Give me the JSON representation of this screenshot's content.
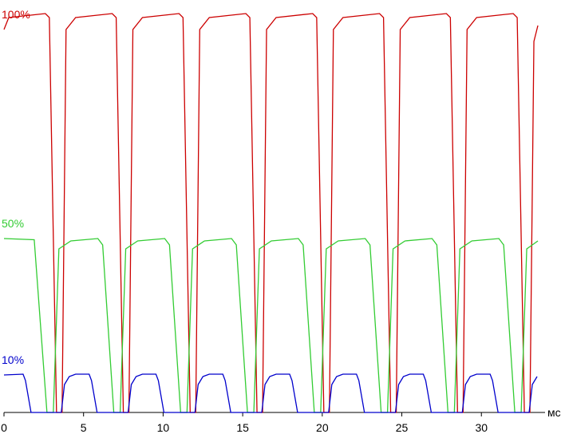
{
  "chart_data": {
    "type": "line",
    "x_label": "мс",
    "xlim": [
      0,
      34
    ],
    "xticks": [
      0,
      5,
      10,
      15,
      20,
      25,
      30
    ],
    "ylim": [
      0,
      100
    ],
    "series": [
      {
        "name": "100%",
        "color": "#cc0000",
        "x": [
          0,
          0.3,
          2.6,
          2.85,
          3.3,
          3.65,
          3.9,
          4.5,
          6.8,
          7.05,
          7.5,
          7.85,
          8.1,
          8.7,
          11.0,
          11.25,
          11.7,
          12.05,
          12.3,
          12.9,
          15.2,
          15.45,
          15.9,
          16.25,
          16.5,
          17.1,
          19.4,
          19.65,
          20.1,
          20.45,
          20.7,
          21.3,
          23.6,
          23.85,
          24.3,
          24.65,
          24.9,
          25.5,
          27.8,
          28.05,
          28.5,
          28.85,
          29.1,
          29.7,
          32.0,
          32.25,
          32.7,
          33.05,
          33.3,
          33.55
        ],
        "values": [
          96,
          99,
          100,
          99,
          0,
          0,
          96,
          99,
          100,
          99,
          0,
          0,
          96,
          99,
          100,
          99,
          0,
          0,
          96,
          99,
          100,
          99,
          0,
          0,
          96,
          99,
          100,
          99,
          0,
          0,
          96,
          99,
          100,
          99,
          0,
          0,
          96,
          99,
          100,
          99,
          0,
          0,
          96,
          99,
          100,
          99,
          0,
          0,
          93,
          97
        ]
      },
      {
        "name": "50%",
        "color": "#33cc33",
        "x": [
          0,
          1.9,
          2.7,
          3.1,
          3.45,
          4.2,
          5.9,
          6.2,
          6.9,
          7.3,
          7.65,
          8.4,
          10.1,
          10.4,
          11.1,
          11.5,
          11.85,
          12.6,
          14.3,
          14.6,
          15.3,
          15.7,
          16.05,
          16.8,
          18.5,
          18.8,
          19.5,
          19.9,
          20.25,
          21.0,
          22.7,
          23.0,
          23.7,
          24.1,
          24.45,
          25.2,
          26.9,
          27.2,
          27.9,
          28.3,
          28.65,
          29.4,
          31.1,
          31.4,
          32.1,
          32.5,
          32.85,
          33.55
        ],
        "values": [
          43.6,
          43.3,
          0,
          0,
          41,
          43,
          43.6,
          42,
          0,
          0,
          41,
          43,
          43.6,
          42,
          0,
          0,
          41,
          43,
          43.6,
          42,
          0,
          0,
          41,
          43,
          43.6,
          42,
          0,
          0,
          41,
          43,
          43.6,
          42,
          0,
          0,
          41,
          43,
          43.6,
          42,
          0,
          0,
          41,
          43,
          43.6,
          42,
          0,
          0,
          41,
          43
        ]
      },
      {
        "name": "10%",
        "color": "#0000cc",
        "x": [
          0,
          1.2,
          1.35,
          1.7,
          3.6,
          3.8,
          4.1,
          4.5,
          5.35,
          5.5,
          5.85,
          7.8,
          8.0,
          8.3,
          8.7,
          9.55,
          9.7,
          10.05,
          12.0,
          12.2,
          12.5,
          12.9,
          13.75,
          13.9,
          14.25,
          16.2,
          16.4,
          16.7,
          17.1,
          17.95,
          18.1,
          18.45,
          20.4,
          20.6,
          20.9,
          21.3,
          22.15,
          22.3,
          22.65,
          24.6,
          24.8,
          25.1,
          25.5,
          26.35,
          26.5,
          26.85,
          28.8,
          29.0,
          29.3,
          29.7,
          30.55,
          30.7,
          31.05,
          33.0,
          33.2,
          33.5
        ],
        "values": [
          9.4,
          9.6,
          8,
          0,
          0,
          7,
          9,
          9.6,
          9.6,
          8,
          0,
          0,
          7,
          9,
          9.6,
          9.6,
          8,
          0,
          0,
          7,
          9,
          9.6,
          9.6,
          8,
          0,
          0,
          7,
          9,
          9.6,
          9.6,
          8,
          0,
          0,
          7,
          9,
          9.6,
          9.6,
          8,
          0,
          0,
          7,
          9,
          9.6,
          9.6,
          8,
          0,
          0,
          7,
          9,
          9.6,
          9.6,
          8,
          0,
          0,
          7,
          9
        ]
      }
    ]
  }
}
